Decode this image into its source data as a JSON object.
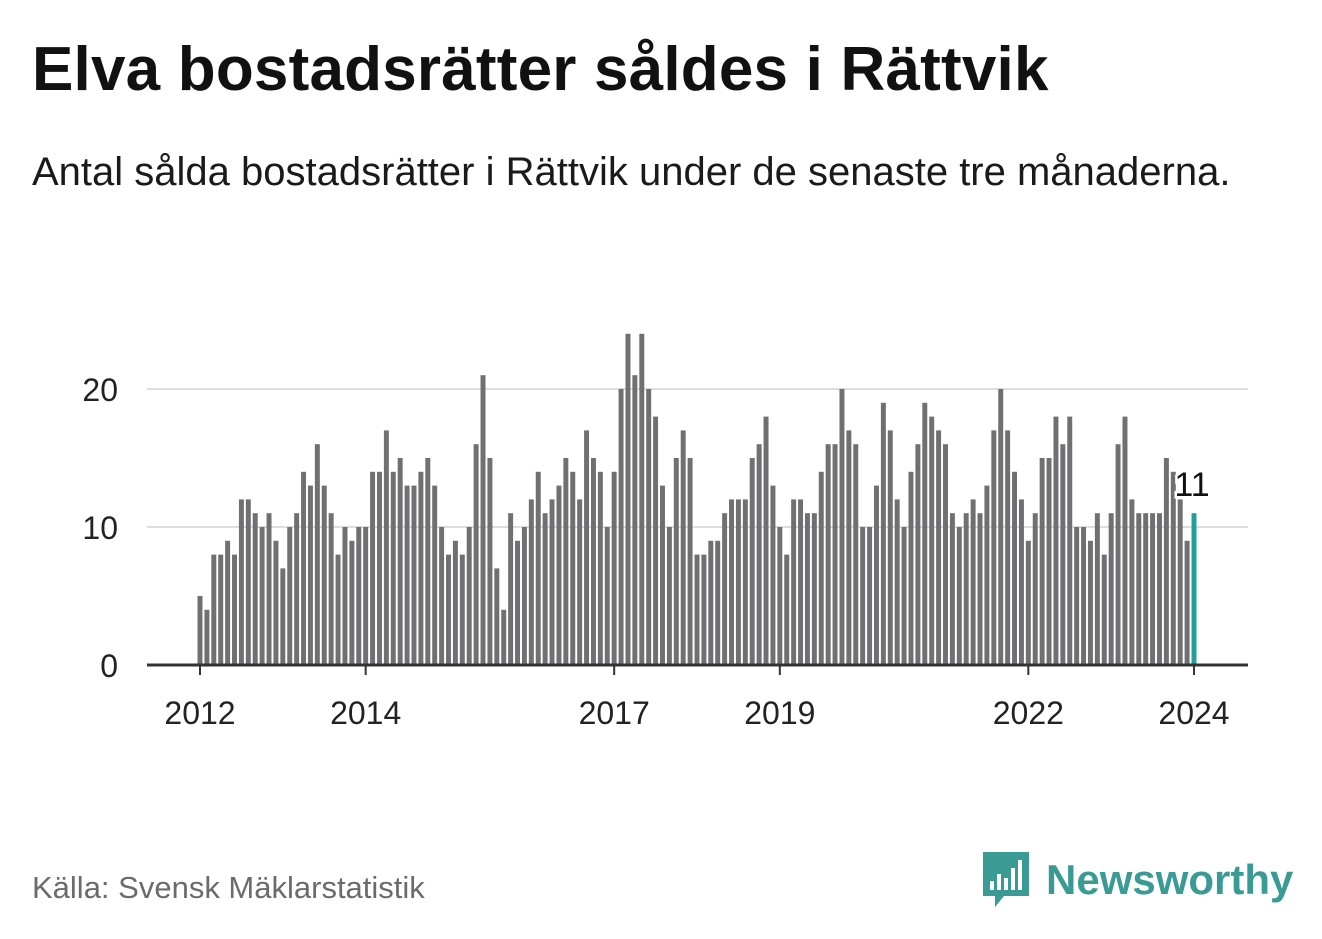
{
  "title": "Elva bostadsrätter såldes i Rättvik",
  "subtitle": "Antal sålda bostadsrätter i Rättvik under de senaste tre månaderna.",
  "source": "Källa: Svensk Mäklarstatistik",
  "brand": {
    "name": "Newsworthy",
    "icon": "newsworthy-logo-icon",
    "color": "#3a9b94"
  },
  "colors": {
    "bar": "#707072",
    "highlight": "#23a096",
    "grid": "#dddddd",
    "axis": "#333333"
  },
  "chart_data": {
    "type": "bar",
    "title": "Elva bostadsrätter såldes i Rättvik",
    "xlabel": "",
    "ylabel": "",
    "ylim": [
      0,
      25
    ],
    "yticks": [
      0,
      10,
      20
    ],
    "xticks": [
      "2012",
      "2014",
      "2017",
      "2019",
      "2022",
      "2024"
    ],
    "grid": true,
    "highlight_label": "11",
    "categories": [
      "2012-01",
      "2012-02",
      "2012-03",
      "2012-04",
      "2012-05",
      "2012-06",
      "2012-07",
      "2012-08",
      "2012-09",
      "2012-10",
      "2012-11",
      "2012-12",
      "2013-01",
      "2013-02",
      "2013-03",
      "2013-04",
      "2013-05",
      "2013-06",
      "2013-07",
      "2013-08",
      "2013-09",
      "2013-10",
      "2013-11",
      "2013-12",
      "2014-01",
      "2014-02",
      "2014-03",
      "2014-04",
      "2014-05",
      "2014-06",
      "2014-07",
      "2014-08",
      "2014-09",
      "2014-10",
      "2014-11",
      "2014-12",
      "2015-01",
      "2015-02",
      "2015-03",
      "2015-04",
      "2015-05",
      "2015-06",
      "2015-07",
      "2015-08",
      "2015-09",
      "2015-10",
      "2015-11",
      "2015-12",
      "2016-01",
      "2016-02",
      "2016-03",
      "2016-04",
      "2016-05",
      "2016-06",
      "2016-07",
      "2016-08",
      "2016-09",
      "2016-10",
      "2016-11",
      "2016-12",
      "2017-01",
      "2017-02",
      "2017-03",
      "2017-04",
      "2017-05",
      "2017-06",
      "2017-07",
      "2017-08",
      "2017-09",
      "2017-10",
      "2017-11",
      "2017-12",
      "2018-01",
      "2018-02",
      "2018-03",
      "2018-04",
      "2018-05",
      "2018-06",
      "2018-07",
      "2018-08",
      "2018-09",
      "2018-10",
      "2018-11",
      "2018-12",
      "2019-01",
      "2019-02",
      "2019-03",
      "2019-04",
      "2019-05",
      "2019-06",
      "2019-07",
      "2019-08",
      "2019-09",
      "2019-10",
      "2019-11",
      "2019-12",
      "2020-01",
      "2020-02",
      "2020-03",
      "2020-04",
      "2020-05",
      "2020-06",
      "2020-07",
      "2020-08",
      "2020-09",
      "2020-10",
      "2020-11",
      "2020-12",
      "2021-01",
      "2021-02",
      "2021-03",
      "2021-04",
      "2021-05",
      "2021-06",
      "2021-07",
      "2021-08",
      "2021-09",
      "2021-10",
      "2021-11",
      "2021-12",
      "2022-01",
      "2022-02",
      "2022-03",
      "2022-04",
      "2022-05",
      "2022-06",
      "2022-07",
      "2022-08",
      "2022-09",
      "2022-10",
      "2022-11",
      "2022-12",
      "2023-01",
      "2023-02",
      "2023-03",
      "2023-04",
      "2023-05",
      "2023-06",
      "2023-07",
      "2023-08",
      "2023-09",
      "2023-10",
      "2023-11",
      "2023-12",
      "2024-01"
    ],
    "values": [
      5,
      4,
      8,
      8,
      9,
      8,
      12,
      12,
      11,
      10,
      11,
      9,
      7,
      10,
      11,
      14,
      13,
      16,
      13,
      11,
      8,
      10,
      9,
      10,
      10,
      14,
      14,
      17,
      14,
      15,
      13,
      13,
      14,
      15,
      13,
      10,
      8,
      9,
      8,
      10,
      16,
      21,
      15,
      7,
      4,
      11,
      9,
      10,
      12,
      14,
      11,
      12,
      13,
      15,
      14,
      12,
      17,
      15,
      14,
      10,
      14,
      20,
      24,
      21,
      24,
      20,
      18,
      13,
      10,
      15,
      17,
      15,
      8,
      8,
      9,
      9,
      11,
      12,
      12,
      12,
      15,
      16,
      18,
      13,
      10,
      8,
      12,
      12,
      11,
      11,
      14,
      16,
      16,
      20,
      17,
      16,
      10,
      10,
      13,
      19,
      17,
      12,
      10,
      14,
      16,
      19,
      18,
      17,
      16,
      11,
      10,
      11,
      12,
      11,
      13,
      17,
      20,
      17,
      14,
      12,
      9,
      11,
      15,
      15,
      18,
      16,
      18,
      10,
      10,
      9,
      11,
      8,
      11,
      16,
      18,
      12,
      11,
      11,
      11,
      11,
      15,
      14,
      12,
      9,
      11
    ]
  }
}
